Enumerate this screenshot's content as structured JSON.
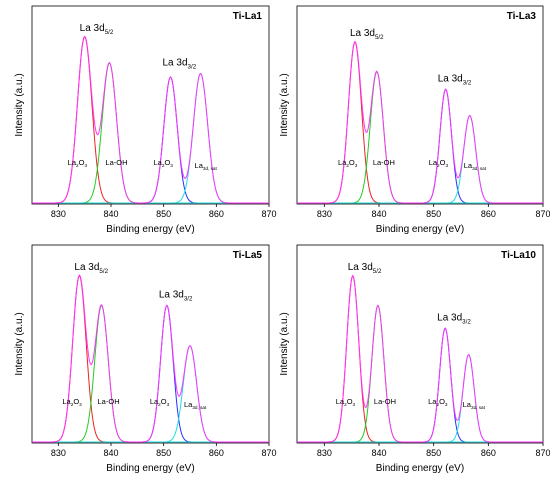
{
  "axes": {
    "xlabel": "Binding energy (eV)",
    "ylabel": "Intensity (a.u.)",
    "xticks": [
      "830",
      "840",
      "850",
      "860",
      "870"
    ]
  },
  "colors": {
    "envelope": "#ff33ff",
    "la2o3_d52": "#ee2222",
    "laoh": "#22cc22",
    "la2o3_d32": "#2233ff",
    "sat": "#22dddd",
    "frame": "#000000"
  },
  "peak_labels": {
    "d52_main": "La 3d",
    "d52_sub": "5/2",
    "d32_main": "La 3d",
    "d32_sub": "3/2",
    "la2o3_main": "La",
    "la2o3_sub": "2",
    "la2o3_tail": "O",
    "la2o3_sub2": "3",
    "laoh": "La-OH",
    "sat_main": "La",
    "sat_sub": "3d, sat"
  },
  "chart_data": [
    {
      "type": "line",
      "title": "Ti-La1",
      "xlabel": "Binding energy (eV)",
      "ylabel": "Intensity (a.u.)",
      "xlim": [
        825,
        870
      ],
      "peaks": [
        {
          "name": "La2O3",
          "center": 835.0,
          "height": 0.95,
          "fwhm": 3.2
        },
        {
          "name": "La-OH",
          "center": 839.7,
          "height": 0.8,
          "fwhm": 3.2
        },
        {
          "name": "La2O3",
          "center": 851.3,
          "height": 0.72,
          "fwhm": 3.0
        },
        {
          "name": "La3d,sat",
          "center": 857.0,
          "height": 0.74,
          "fwhm": 3.2
        }
      ]
    },
    {
      "type": "line",
      "title": "Ti-La3",
      "xlabel": "Binding energy (eV)",
      "ylabel": "Intensity (a.u.)",
      "xlim": [
        825,
        870
      ],
      "peaks": [
        {
          "name": "La2O3",
          "center": 835.6,
          "height": 0.92,
          "fwhm": 2.8
        },
        {
          "name": "La-OH",
          "center": 839.6,
          "height": 0.75,
          "fwhm": 2.8
        },
        {
          "name": "La2O3",
          "center": 852.2,
          "height": 0.65,
          "fwhm": 2.5
        },
        {
          "name": "La3d,sat",
          "center": 856.6,
          "height": 0.5,
          "fwhm": 2.6
        }
      ]
    },
    {
      "type": "line",
      "title": "Ti-La5",
      "xlabel": "Binding energy (eV)",
      "ylabel": "Intensity (a.u.)",
      "xlim": [
        825,
        870
      ],
      "peaks": [
        {
          "name": "La2O3",
          "center": 834.0,
          "height": 0.95,
          "fwhm": 3.0
        },
        {
          "name": "La-OH",
          "center": 838.2,
          "height": 0.78,
          "fwhm": 3.0
        },
        {
          "name": "La2O3",
          "center": 850.6,
          "height": 0.78,
          "fwhm": 2.8
        },
        {
          "name": "La3d,sat",
          "center": 855.0,
          "height": 0.55,
          "fwhm": 3.0
        }
      ]
    },
    {
      "type": "line",
      "title": "Ti-La10",
      "xlabel": "Binding energy (eV)",
      "ylabel": "Intensity (a.u.)",
      "xlim": [
        825,
        870
      ],
      "peaks": [
        {
          "name": "La2O3",
          "center": 835.2,
          "height": 0.95,
          "fwhm": 2.6
        },
        {
          "name": "La-OH",
          "center": 839.8,
          "height": 0.78,
          "fwhm": 2.6
        },
        {
          "name": "La2O3",
          "center": 852.1,
          "height": 0.65,
          "fwhm": 2.4
        },
        {
          "name": "La3d,sat",
          "center": 856.4,
          "height": 0.5,
          "fwhm": 2.4
        }
      ]
    }
  ]
}
